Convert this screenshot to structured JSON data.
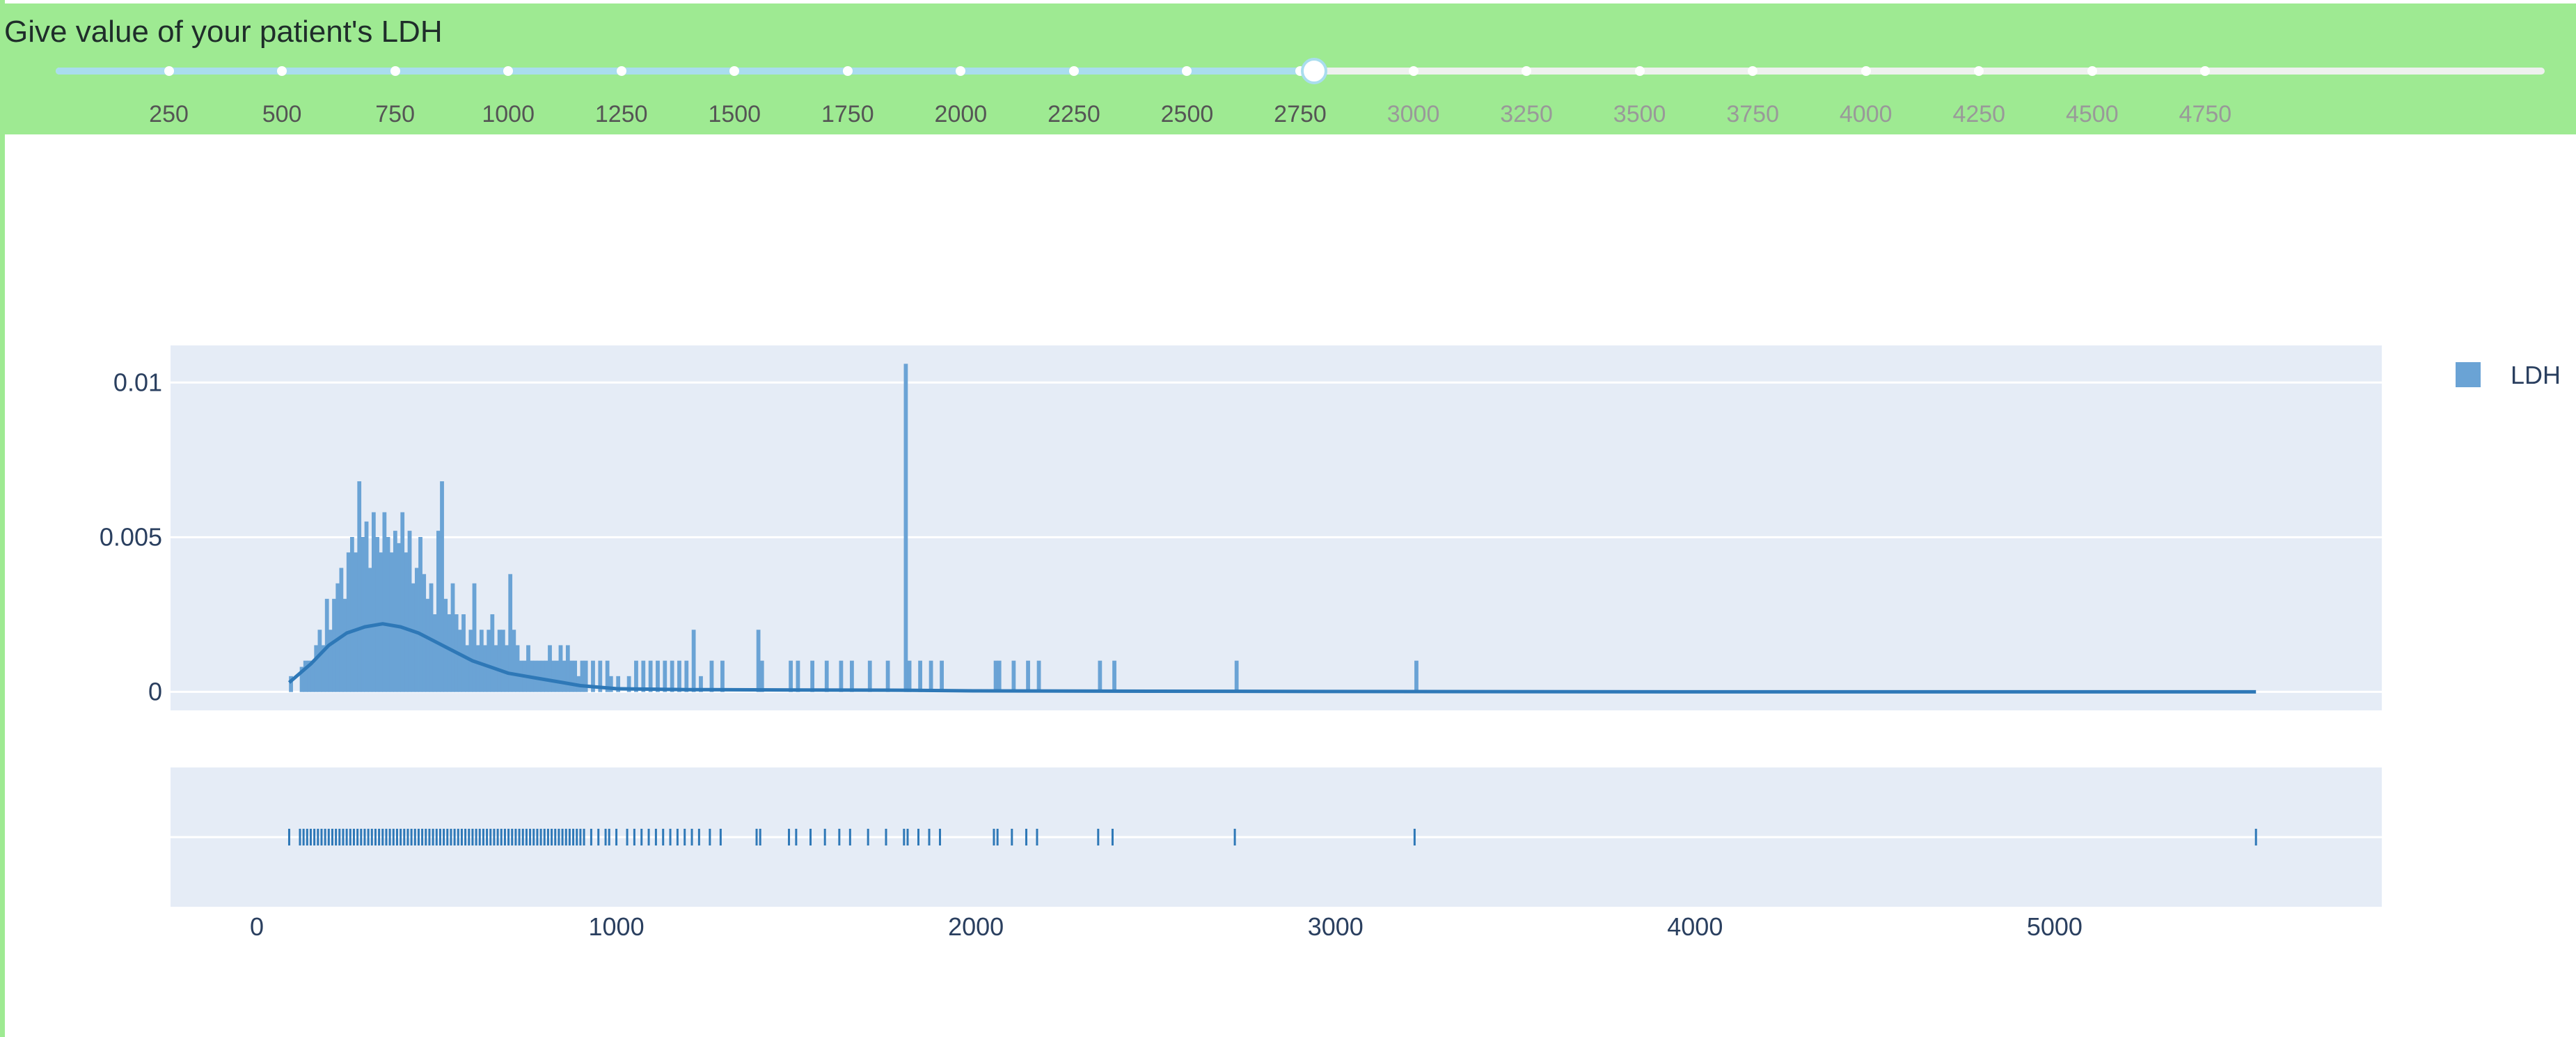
{
  "slider": {
    "title": "Give value of your patient's LDH",
    "ticks": [
      250,
      500,
      750,
      1000,
      1250,
      1500,
      1750,
      2000,
      2250,
      2500,
      2750,
      3000,
      3250,
      3500,
      3750,
      4000,
      4250,
      4500,
      4750
    ],
    "value": 2780,
    "min": 0,
    "max": 5500,
    "colors": {
      "panel": "#9eea92",
      "active_track": "#a9ddee",
      "inactive_track": "#eef1ee",
      "active_label": "#555555",
      "inactive_label": "#999999"
    }
  },
  "chart_data": {
    "type": "histogram",
    "legend": {
      "label": "LDH",
      "color": "#6aa3d5",
      "position": "top-right"
    },
    "x": {
      "ticks": [
        0,
        1000,
        2000,
        3000,
        4000,
        5000
      ],
      "range": [
        -240,
        5910
      ]
    },
    "y": {
      "ticks": [
        0,
        0.005,
        0.01
      ],
      "tick_labels": [
        "0",
        "0.005",
        "0.01"
      ],
      "range": [
        -0.0006,
        0.0112
      ]
    },
    "bin_width": 10,
    "bar_color": "#6aa3d5",
    "line_color": "#2e78b7",
    "bars": [
      [
        90,
        0.0005
      ],
      [
        120,
        0.0008
      ],
      [
        130,
        0.001
      ],
      [
        140,
        0.001
      ],
      [
        150,
        0.001
      ],
      [
        160,
        0.0015
      ],
      [
        170,
        0.002
      ],
      [
        180,
        0.0015
      ],
      [
        190,
        0.003
      ],
      [
        200,
        0.002
      ],
      [
        210,
        0.003
      ],
      [
        220,
        0.0035
      ],
      [
        230,
        0.004
      ],
      [
        240,
        0.003
      ],
      [
        250,
        0.0045
      ],
      [
        260,
        0.005
      ],
      [
        270,
        0.0045
      ],
      [
        280,
        0.0068
      ],
      [
        290,
        0.005
      ],
      [
        300,
        0.0055
      ],
      [
        310,
        0.004
      ],
      [
        320,
        0.0058
      ],
      [
        330,
        0.005
      ],
      [
        340,
        0.0045
      ],
      [
        350,
        0.0058
      ],
      [
        360,
        0.005
      ],
      [
        370,
        0.0045
      ],
      [
        380,
        0.0052
      ],
      [
        390,
        0.0048
      ],
      [
        400,
        0.0058
      ],
      [
        410,
        0.0045
      ],
      [
        420,
        0.0052
      ],
      [
        430,
        0.0035
      ],
      [
        440,
        0.004
      ],
      [
        450,
        0.005
      ],
      [
        460,
        0.0038
      ],
      [
        470,
        0.003
      ],
      [
        480,
        0.0035
      ],
      [
        490,
        0.0025
      ],
      [
        500,
        0.0052
      ],
      [
        510,
        0.0068
      ],
      [
        520,
        0.003
      ],
      [
        530,
        0.0025
      ],
      [
        540,
        0.0035
      ],
      [
        550,
        0.0025
      ],
      [
        560,
        0.002
      ],
      [
        570,
        0.0025
      ],
      [
        580,
        0.0015
      ],
      [
        590,
        0.002
      ],
      [
        600,
        0.0035
      ],
      [
        610,
        0.0015
      ],
      [
        620,
        0.002
      ],
      [
        630,
        0.0015
      ],
      [
        640,
        0.002
      ],
      [
        650,
        0.0025
      ],
      [
        660,
        0.0015
      ],
      [
        670,
        0.002
      ],
      [
        680,
        0.002
      ],
      [
        690,
        0.0015
      ],
      [
        700,
        0.0038
      ],
      [
        710,
        0.002
      ],
      [
        720,
        0.0015
      ],
      [
        730,
        0.001
      ],
      [
        740,
        0.001
      ],
      [
        750,
        0.0015
      ],
      [
        760,
        0.001
      ],
      [
        770,
        0.001
      ],
      [
        780,
        0.001
      ],
      [
        790,
        0.001
      ],
      [
        800,
        0.001
      ],
      [
        810,
        0.0015
      ],
      [
        820,
        0.001
      ],
      [
        830,
        0.001
      ],
      [
        840,
        0.0015
      ],
      [
        850,
        0.001
      ],
      [
        860,
        0.0015
      ],
      [
        870,
        0.001
      ],
      [
        880,
        0.001
      ],
      [
        890,
        0.0005
      ],
      [
        900,
        0.001
      ],
      [
        910,
        0.001
      ],
      [
        930,
        0.001
      ],
      [
        950,
        0.001
      ],
      [
        970,
        0.001
      ],
      [
        980,
        0.0005
      ],
      [
        1000,
        0.0005
      ],
      [
        1030,
        0.0005
      ],
      [
        1050,
        0.001
      ],
      [
        1070,
        0.001
      ],
      [
        1090,
        0.001
      ],
      [
        1110,
        0.001
      ],
      [
        1130,
        0.001
      ],
      [
        1150,
        0.001
      ],
      [
        1170,
        0.001
      ],
      [
        1190,
        0.001
      ],
      [
        1210,
        0.002
      ],
      [
        1230,
        0.0005
      ],
      [
        1260,
        0.001
      ],
      [
        1290,
        0.001
      ],
      [
        1390,
        0.002
      ],
      [
        1400,
        0.001
      ],
      [
        1480,
        0.001
      ],
      [
        1500,
        0.001
      ],
      [
        1540,
        0.001
      ],
      [
        1580,
        0.001
      ],
      [
        1620,
        0.001
      ],
      [
        1650,
        0.001
      ],
      [
        1700,
        0.001
      ],
      [
        1750,
        0.001
      ],
      [
        1800,
        0.0106
      ],
      [
        1810,
        0.001
      ],
      [
        1840,
        0.001
      ],
      [
        1870,
        0.001
      ],
      [
        1900,
        0.001
      ],
      [
        2050,
        0.001
      ],
      [
        2060,
        0.001
      ],
      [
        2100,
        0.001
      ],
      [
        2140,
        0.001
      ],
      [
        2170,
        0.001
      ],
      [
        2340,
        0.001
      ],
      [
        2380,
        0.001
      ],
      [
        2720,
        0.001
      ],
      [
        3220,
        0.001
      ]
    ],
    "kde": [
      [
        90,
        0.0003
      ],
      [
        150,
        0.0009
      ],
      [
        200,
        0.0015
      ],
      [
        250,
        0.0019
      ],
      [
        300,
        0.0021
      ],
      [
        350,
        0.0022
      ],
      [
        400,
        0.0021
      ],
      [
        450,
        0.0019
      ],
      [
        500,
        0.0016
      ],
      [
        550,
        0.0013
      ],
      [
        600,
        0.001
      ],
      [
        650,
        0.0008
      ],
      [
        700,
        0.0006
      ],
      [
        750,
        0.0005
      ],
      [
        800,
        0.0004
      ],
      [
        850,
        0.0003
      ],
      [
        900,
        0.0002
      ],
      [
        1000,
        0.0001
      ],
      [
        1200,
        7e-05
      ],
      [
        1500,
        6e-05
      ],
      [
        1800,
        5e-05
      ],
      [
        2000,
        3e-05
      ],
      [
        2500,
        2e-05
      ],
      [
        3000,
        1e-05
      ],
      [
        4000,
        0
      ],
      [
        5000,
        0
      ],
      [
        5560,
        0
      ]
    ],
    "rug": [
      90,
      120,
      130,
      140,
      150,
      160,
      170,
      180,
      190,
      200,
      210,
      220,
      230,
      240,
      250,
      260,
      270,
      280,
      290,
      300,
      310,
      320,
      330,
      340,
      350,
      360,
      370,
      380,
      390,
      400,
      410,
      420,
      430,
      440,
      450,
      460,
      470,
      480,
      490,
      500,
      510,
      520,
      530,
      540,
      550,
      560,
      570,
      580,
      590,
      600,
      610,
      620,
      630,
      640,
      650,
      660,
      670,
      680,
      690,
      700,
      710,
      720,
      730,
      740,
      750,
      760,
      770,
      780,
      790,
      800,
      810,
      820,
      830,
      840,
      850,
      860,
      870,
      880,
      890,
      900,
      910,
      930,
      950,
      970,
      980,
      1000,
      1030,
      1050,
      1070,
      1090,
      1110,
      1130,
      1150,
      1170,
      1190,
      1210,
      1230,
      1260,
      1290,
      1390,
      1400,
      1480,
      1500,
      1540,
      1580,
      1620,
      1650,
      1700,
      1750,
      1800,
      1810,
      1840,
      1870,
      1900,
      2050,
      2060,
      2100,
      2140,
      2170,
      2340,
      2380,
      2720,
      3220,
      5560
    ]
  }
}
